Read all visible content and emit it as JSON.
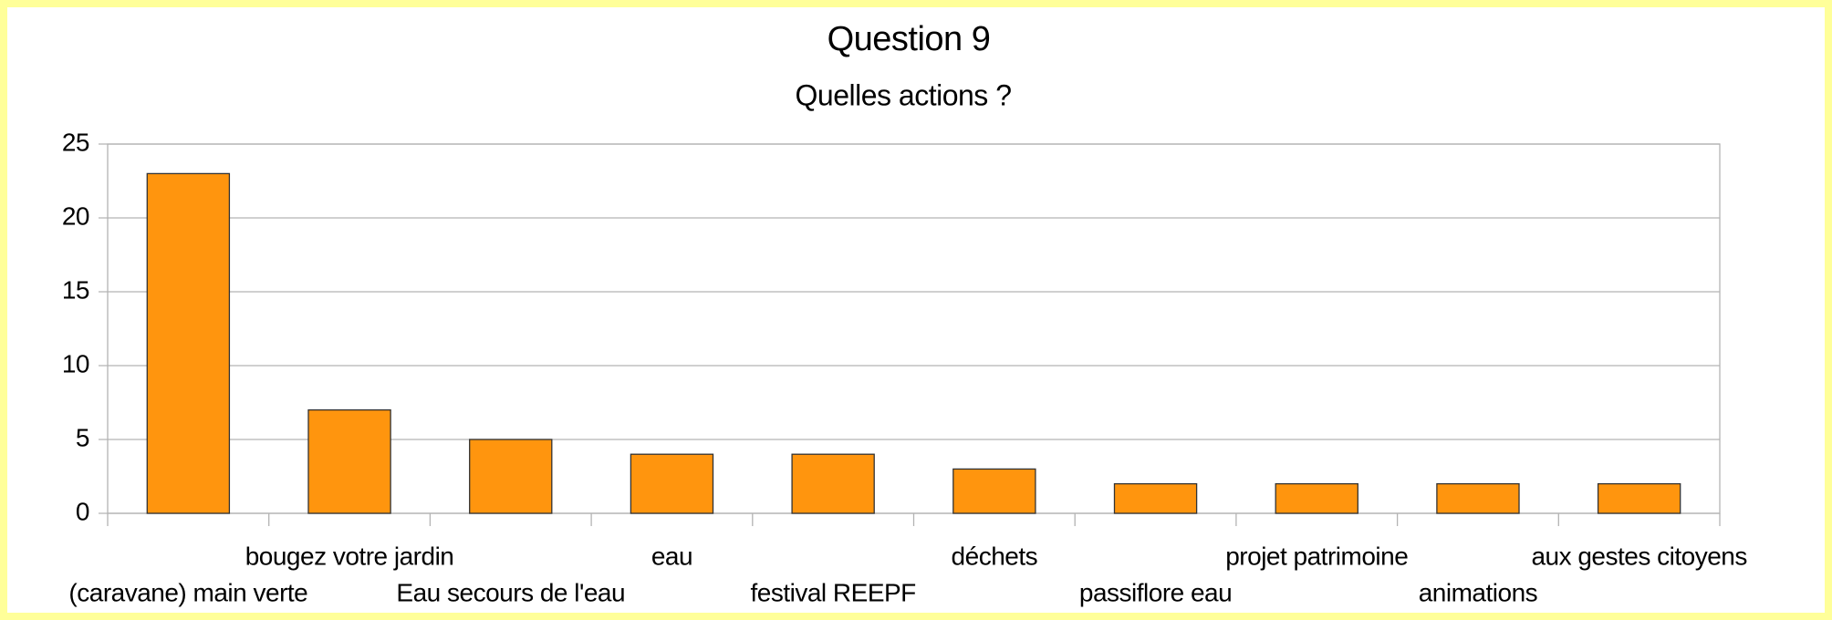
{
  "chart_data": {
    "type": "bar",
    "title": "Question 9",
    "subtitle": "Quelles actions ?",
    "categories": [
      "(caravane) main verte",
      "bougez votre jardin",
      "Eau secours de l'eau",
      "eau",
      "festival REEPF",
      "déchets",
      "passiflore eau",
      "projet patrimoine",
      "animations",
      "aux gestes citoyens"
    ],
    "values": [
      23,
      7,
      5,
      4,
      4,
      3,
      2,
      2,
      2,
      2
    ],
    "color": "#ff950e",
    "ylim": [
      0,
      25
    ],
    "yticks": [
      0,
      5,
      10,
      15,
      20,
      25
    ],
    "grid": true
  }
}
